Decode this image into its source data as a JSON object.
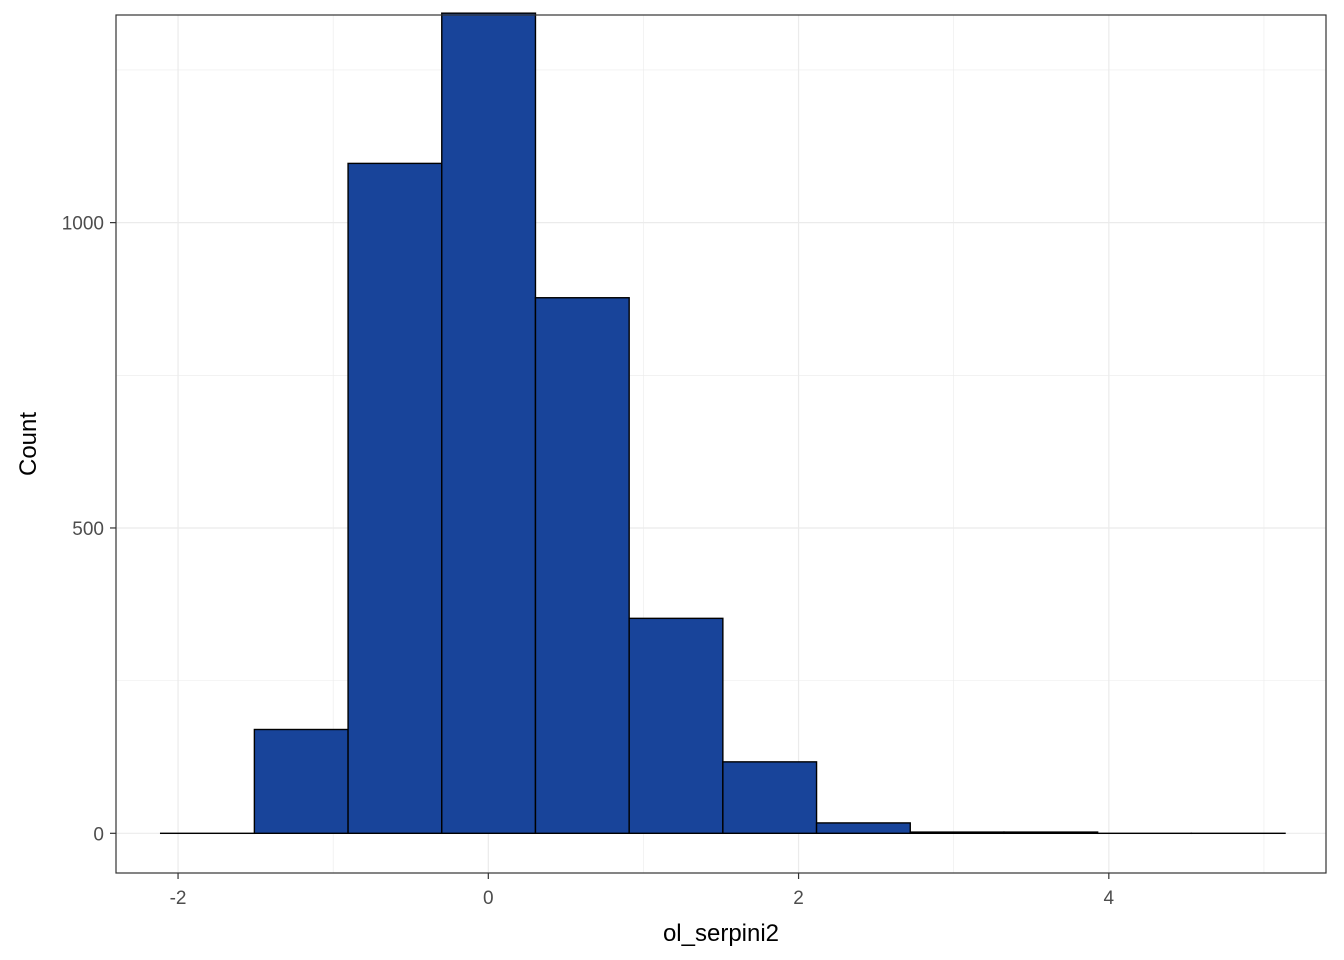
{
  "chart_data": {
    "type": "bar",
    "subtype": "histogram",
    "xlabel": "ol_serpini2",
    "ylabel": "Count",
    "xlim": [
      -2.4,
      5.4
    ],
    "ylim": [
      -65,
      1340
    ],
    "x_ticks": [
      -2,
      0,
      2,
      4
    ],
    "x_tick_labels": [
      "-2",
      "0",
      "2",
      "4"
    ],
    "y_ticks": [
      0,
      500,
      1000
    ],
    "y_tick_labels": [
      "0",
      "500",
      "1000"
    ],
    "bin_width": 0.604,
    "bins": [
      {
        "x0": -2.112,
        "x1": -1.508,
        "count": 0
      },
      {
        "x0": -1.508,
        "x1": -0.904,
        "count": 170
      },
      {
        "x0": -0.904,
        "x1": -0.3,
        "count": 1097
      },
      {
        "x0": -0.3,
        "x1": 0.304,
        "count": 1343
      },
      {
        "x0": 0.304,
        "x1": 0.908,
        "count": 877
      },
      {
        "x0": 0.908,
        "x1": 1.512,
        "count": 352
      },
      {
        "x0": 1.512,
        "x1": 2.116,
        "count": 117
      },
      {
        "x0": 2.116,
        "x1": 2.72,
        "count": 17
      },
      {
        "x0": 2.72,
        "x1": 3.324,
        "count": 2
      },
      {
        "x0": 3.324,
        "x1": 3.928,
        "count": 2
      },
      {
        "x0": 3.928,
        "x1": 4.532,
        "count": 0
      },
      {
        "x0": 4.532,
        "x1": 5.136,
        "count": 0
      }
    ],
    "grid": true,
    "legend": "none",
    "colors": {
      "bar_fill": "#18449A",
      "bar_stroke": "#000000",
      "grid": "#EBEBEB",
      "panel_border": "#333333",
      "tick_label": "#4D4D4D"
    }
  }
}
